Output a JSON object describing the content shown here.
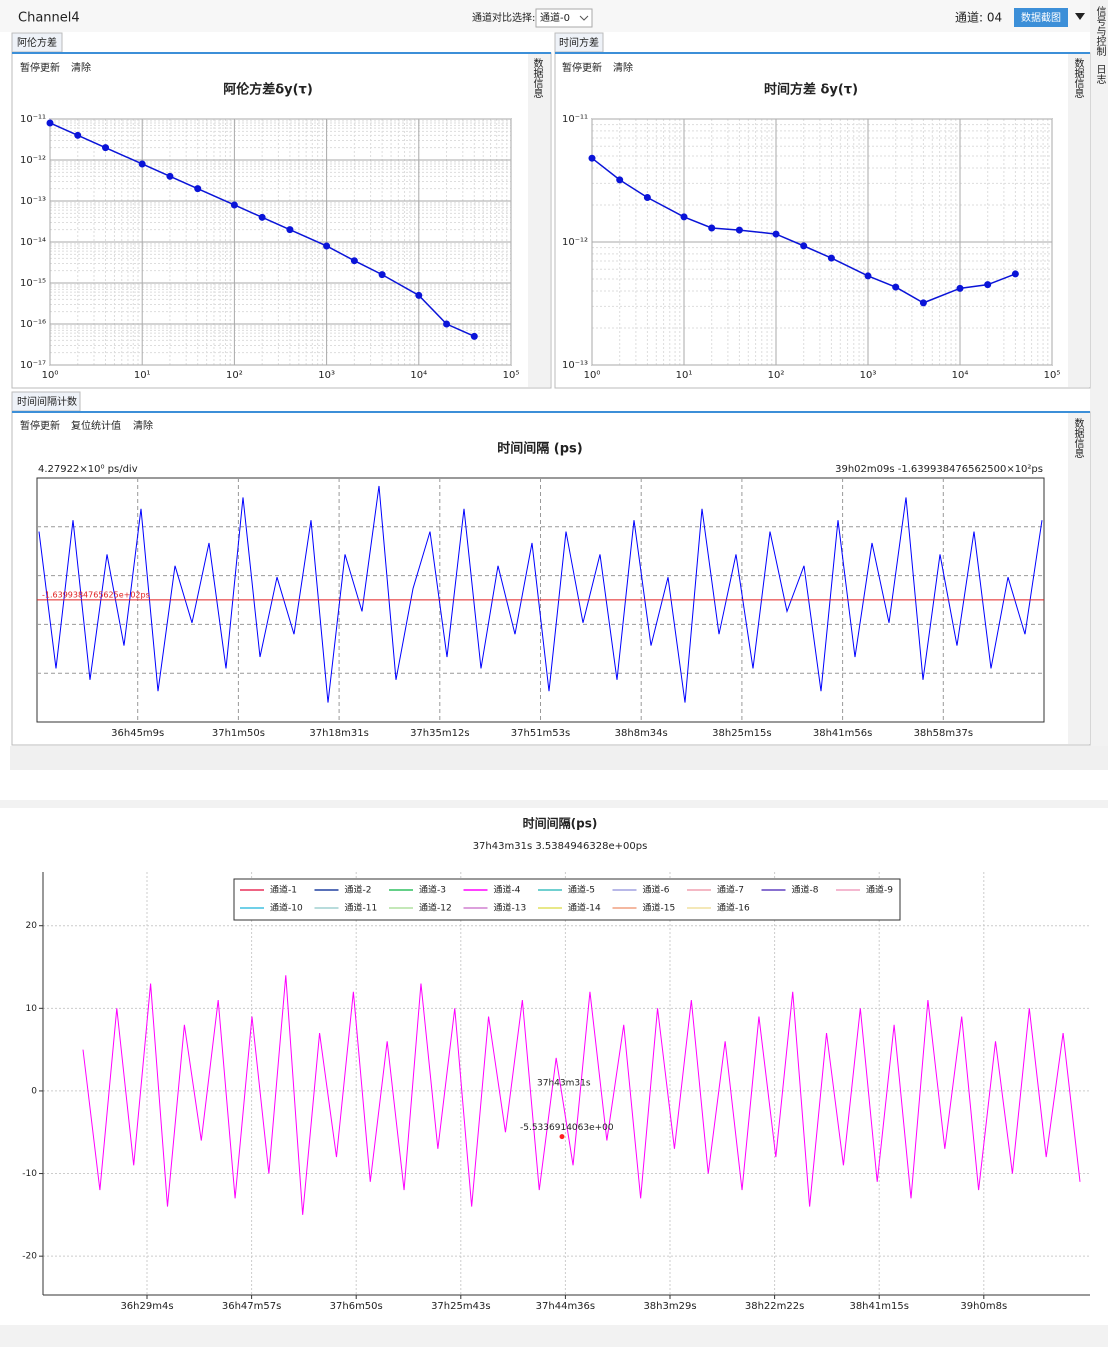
{
  "window": {
    "title": "Channel4",
    "compare_label": "通道对比选择:",
    "compare_value": "通道-0",
    "channel": "通道: 04",
    "screenshot_button": "数据截图",
    "side_tabs": [
      "信号与控制",
      "日志"
    ]
  },
  "panels": [
    {
      "tab": "阿伦方差",
      "buttons": [
        "暂停更新",
        "清除"
      ],
      "side_tab": "数据信息"
    },
    {
      "tab": "时间方差",
      "buttons": [
        "暂停更新",
        "清除"
      ],
      "side_tab": "数据信息"
    },
    {
      "tab": "时间间隔计数",
      "buttons": [
        "暂停更新",
        "复位统计值",
        "清除"
      ],
      "side_tab": "数据信息"
    }
  ],
  "chart_data": [
    {
      "type": "logline",
      "title": "阿伦方差δy(τ)",
      "color": "#0a14d8",
      "grid": true,
      "xscale": "log",
      "yscale": "log",
      "x": [
        1,
        2,
        4,
        10,
        20,
        40,
        100,
        200,
        400,
        1000,
        2000,
        4000,
        10000,
        20000,
        40000
      ],
      "values": [
        8e-12,
        4e-12,
        2e-12,
        8e-13,
        4e-13,
        2e-13,
        8e-14,
        4e-14,
        2e-14,
        8e-15,
        3.5e-15,
        1.6e-15,
        5e-16,
        1e-16,
        5e-17
      ],
      "xlim": [
        1,
        100000
      ],
      "ylim": [
        1e-17,
        1e-11
      ],
      "xticks": [
        {
          "value": 1,
          "label": "10⁰"
        },
        {
          "value": 10,
          "label": "10¹"
        },
        {
          "value": 100,
          "label": "10²"
        },
        {
          "value": 1000,
          "label": "10³"
        },
        {
          "value": 10000,
          "label": "10⁴"
        },
        {
          "value": 100000,
          "label": "10⁵"
        }
      ],
      "yticks": [
        {
          "value": 1e-17,
          "label": "10⁻¹⁷"
        },
        {
          "value": 1e-16,
          "label": "10⁻¹⁶"
        },
        {
          "value": 1e-15,
          "label": "10⁻¹⁵"
        },
        {
          "value": 1e-14,
          "label": "10⁻¹⁴"
        },
        {
          "value": 1e-13,
          "label": "10⁻¹³"
        },
        {
          "value": 1e-12,
          "label": "10⁻¹²"
        },
        {
          "value": 1e-11,
          "label": "10⁻¹¹"
        }
      ]
    },
    {
      "type": "logline",
      "title": "时间方差 δy(τ)",
      "color": "#0a14d8",
      "grid": true,
      "xscale": "log",
      "yscale": "log",
      "x": [
        1,
        2,
        4,
        10,
        20,
        40,
        100,
        200,
        400,
        1000,
        2000,
        4000,
        10000,
        20000,
        40000
      ],
      "values": [
        4.8e-12,
        3.2e-12,
        2.3e-12,
        1.6e-12,
        1.3e-12,
        1.25e-12,
        1.16e-12,
        9.3e-13,
        7.4e-13,
        5.3e-13,
        4.3e-13,
        3.2e-13,
        4.2e-13,
        4.5e-13,
        5.5e-13
      ],
      "xlim": [
        1,
        100000
      ],
      "ylim": [
        1e-13,
        1e-11
      ],
      "xticks": [
        {
          "value": 1,
          "label": "10⁰"
        },
        {
          "value": 10,
          "label": "10¹"
        },
        {
          "value": 100,
          "label": "10²"
        },
        {
          "value": 1000,
          "label": "10³"
        },
        {
          "value": 10000,
          "label": "10⁴"
        },
        {
          "value": 100000,
          "label": "10⁵"
        }
      ],
      "yticks": [
        {
          "value": 1e-13,
          "label": "10⁻¹³"
        },
        {
          "value": 1e-12,
          "label": "10⁻¹²"
        },
        {
          "value": 1e-11,
          "label": "10⁻¹¹"
        }
      ]
    },
    {
      "type": "noise",
      "title": "时间间隔 (ps)",
      "left_label": "4.27922×10⁰ ps/div",
      "right_label": "39h02m09s  -1.639938476562500×10²ps",
      "color": "#0000ff",
      "reference": {
        "value": -163.99384765625,
        "label": "-1.6399384765625e+02ps",
        "color": "#e02020"
      },
      "ylim": [
        -174.7,
        -153.3
      ],
      "xtick_labels": [
        "36h45m9s",
        "37h1m50s",
        "37h18m31s",
        "37h35m12s",
        "37h51m53s",
        "38h8m34s",
        "38h25m15s",
        "38h41m56s",
        "38h58m37s"
      ],
      "values": [
        -158,
        -170,
        -157,
        -171,
        -160,
        -168,
        -156,
        -172,
        -161,
        -166,
        -159,
        -170,
        -155,
        -169,
        -162,
        -167,
        -157,
        -173,
        -160,
        -165,
        -154,
        -171,
        -163,
        -158,
        -169,
        -156,
        -170,
        -161,
        -167,
        -159,
        -172,
        -158,
        -166,
        -160,
        -171,
        -157,
        -168,
        -162,
        -173,
        -156,
        -167,
        -160,
        -170,
        -158,
        -165,
        -161,
        -172,
        -157,
        -169,
        -159,
        -166,
        -155,
        -171,
        -160,
        -168,
        -158,
        -170,
        -162,
        -167,
        -157
      ]
    },
    {
      "type": "multiline",
      "title": "时间间隔(ps)",
      "subtitle": "37h43m31s   3.5384946328e+00ps",
      "legend": "top",
      "grid": true,
      "ylim": [
        -24.7,
        26.5
      ],
      "yticks": [
        -20,
        -10,
        0,
        10,
        20
      ],
      "xtick_labels": [
        "36h29m4s",
        "36h47m57s",
        "37h6m50s",
        "37h25m43s",
        "37h44m36s",
        "38h3m29s",
        "38h22m22s",
        "38h41m15s",
        "39h0m8s"
      ],
      "marker": {
        "x_label": "37h43m31s",
        "value": -5.5336914063,
        "label": "-5.5336914063e+00",
        "color": "#ff2020"
      },
      "series": [
        {
          "name": "通道-1",
          "color": "#e8305a"
        },
        {
          "name": "通道-2",
          "color": "#2040a0"
        },
        {
          "name": "通道-3",
          "color": "#30c060"
        },
        {
          "name": "通道-4",
          "color": "#ff00ff",
          "values": [
            5,
            -12,
            10,
            -9,
            13,
            -14,
            8,
            -6,
            11,
            -13,
            9,
            -10,
            14,
            -15,
            7,
            -8,
            12,
            -11,
            6,
            -12,
            13,
            -7,
            10,
            -14,
            9,
            -5,
            11,
            -12,
            4,
            -9,
            12,
            -6,
            8,
            -13,
            10,
            -7,
            11,
            -10,
            6,
            -12,
            9,
            -8,
            12,
            -14,
            7,
            -9,
            10,
            -11,
            8,
            -13,
            11,
            -7,
            9,
            -12,
            6,
            -10,
            10,
            -8,
            7,
            -11
          ]
        },
        {
          "name": "通道-5",
          "color": "#40c0c0"
        },
        {
          "name": "通道-6",
          "color": "#a0a0e0"
        },
        {
          "name": "通道-7",
          "color": "#f0a0b0"
        },
        {
          "name": "通道-8",
          "color": "#6040c0"
        },
        {
          "name": "通道-9",
          "color": "#f0a0c0"
        },
        {
          "name": "通道-10",
          "color": "#40c0e0"
        },
        {
          "name": "通道-11",
          "color": "#a0d0d0"
        },
        {
          "name": "通道-12",
          "color": "#b0e0a0"
        },
        {
          "name": "通道-13",
          "color": "#d080d0"
        },
        {
          "name": "通道-14",
          "color": "#e0e060"
        },
        {
          "name": "通道-15",
          "color": "#f0a080"
        },
        {
          "name": "通道-16",
          "color": "#f0e0a0"
        }
      ]
    }
  ]
}
